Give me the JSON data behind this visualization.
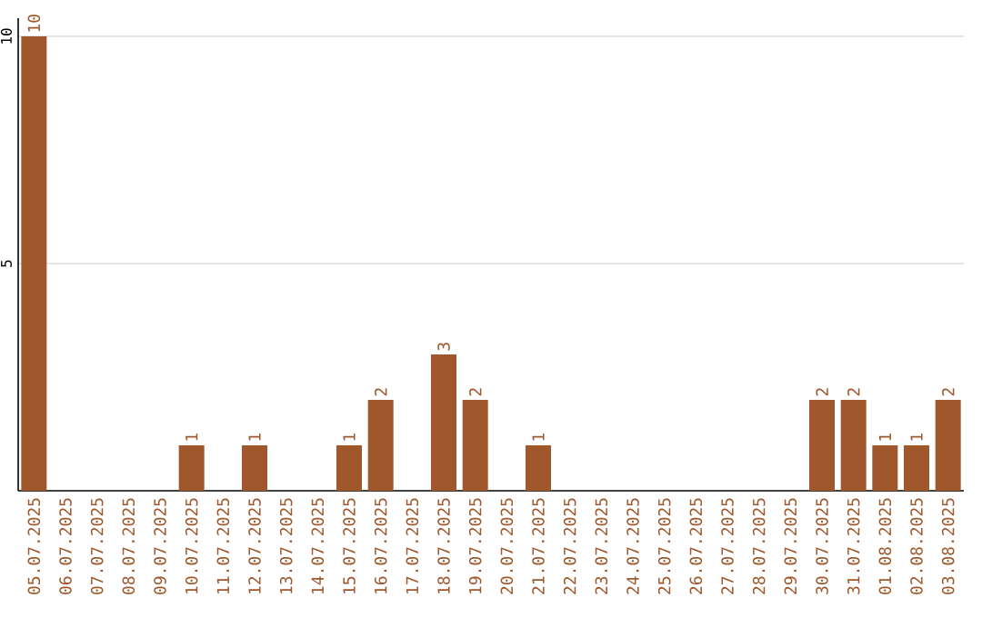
{
  "chart_data": {
    "type": "bar",
    "categories": [
      "05.07.2025",
      "06.07.2025",
      "07.07.2025",
      "08.07.2025",
      "09.07.2025",
      "10.07.2025",
      "11.07.2025",
      "12.07.2025",
      "13.07.2025",
      "14.07.2025",
      "15.07.2025",
      "16.07.2025",
      "17.07.2025",
      "18.07.2025",
      "19.07.2025",
      "20.07.2025",
      "21.07.2025",
      "22.07.2025",
      "23.07.2025",
      "24.07.2025",
      "25.07.2025",
      "26.07.2025",
      "27.07.2025",
      "28.07.2025",
      "29.07.2025",
      "30.07.2025",
      "31.07.2025",
      "01.08.2025",
      "02.08.2025",
      "03.08.2025"
    ],
    "values": [
      10,
      0,
      0,
      0,
      0,
      1,
      0,
      1,
      0,
      0,
      1,
      2,
      0,
      3,
      2,
      0,
      1,
      0,
      0,
      0,
      0,
      0,
      0,
      0,
      0,
      2,
      2,
      1,
      1,
      2
    ],
    "value_labels": [
      "10",
      null,
      null,
      null,
      null,
      "1",
      null,
      "1",
      null,
      null,
      "1",
      "2",
      null,
      "3",
      "2",
      null,
      "1",
      null,
      null,
      null,
      null,
      null,
      null,
      null,
      null,
      "2",
      "2",
      "1",
      "1",
      "2"
    ],
    "color": "#a0572b",
    "ylim": [
      0,
      10.4
    ],
    "yticks": [
      5,
      10
    ],
    "grid": "y"
  }
}
